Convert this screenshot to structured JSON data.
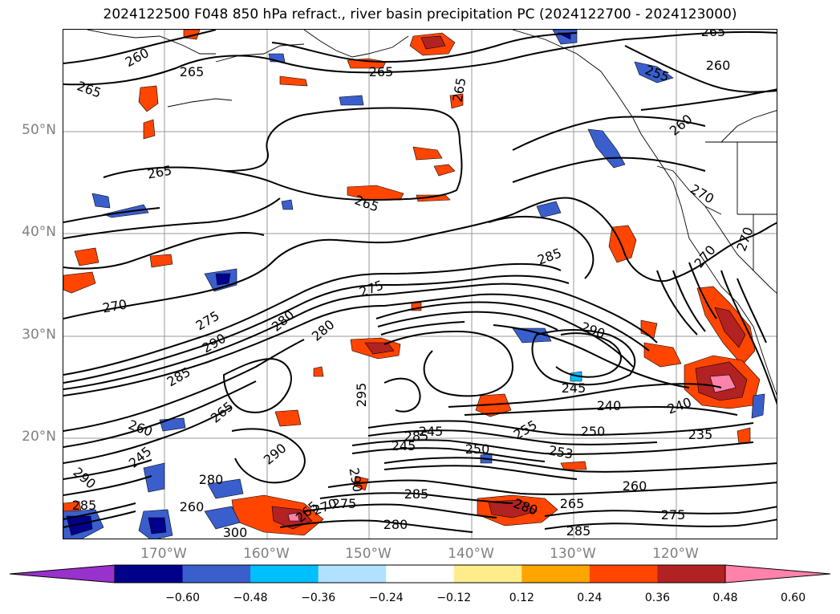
{
  "title": "2024122500 F048 850 hPa refract., river basin precipitation PC (2024122700 - 2024123000)",
  "lat_labels": [
    "50°N",
    "40°N",
    "30°N",
    "20°N"
  ],
  "lon_labels": [
    "170°W",
    "160°W",
    "150°W",
    "140°W",
    "130°W",
    "120°W"
  ],
  "colorbar": {
    "ticks": [
      "−0.60",
      "−0.48",
      "−0.36",
      "−0.24",
      "−0.12",
      "0.12",
      "0.24",
      "0.36",
      "0.48",
      "0.60"
    ],
    "colors": [
      "#9932cc",
      "#00008b",
      "#3a5fcd",
      "#00bfff",
      "#b0e2ff",
      "#ffffff",
      "#ffec8b",
      "#ffa500",
      "#ff4500",
      "#b22222",
      "#ff82ab"
    ]
  },
  "contour_labels": [
    "260",
    "265",
    "265",
    "265",
    "265",
    "265",
    "265",
    "265",
    "260",
    "255",
    "260",
    "270",
    "270",
    "270",
    "270",
    "275",
    "275",
    "280",
    "280",
    "285",
    "285",
    "290",
    "290",
    "245",
    "240",
    "250",
    "240",
    "235",
    "245",
    "245",
    "250",
    "255",
    "253",
    "260",
    "265",
    "280",
    "285",
    "275",
    "290",
    "285",
    "265",
    "260",
    "285",
    "290",
    "280",
    "285",
    "245",
    "260",
    "290",
    "295",
    "300",
    "265",
    "270",
    "275",
    "280"
  ]
}
